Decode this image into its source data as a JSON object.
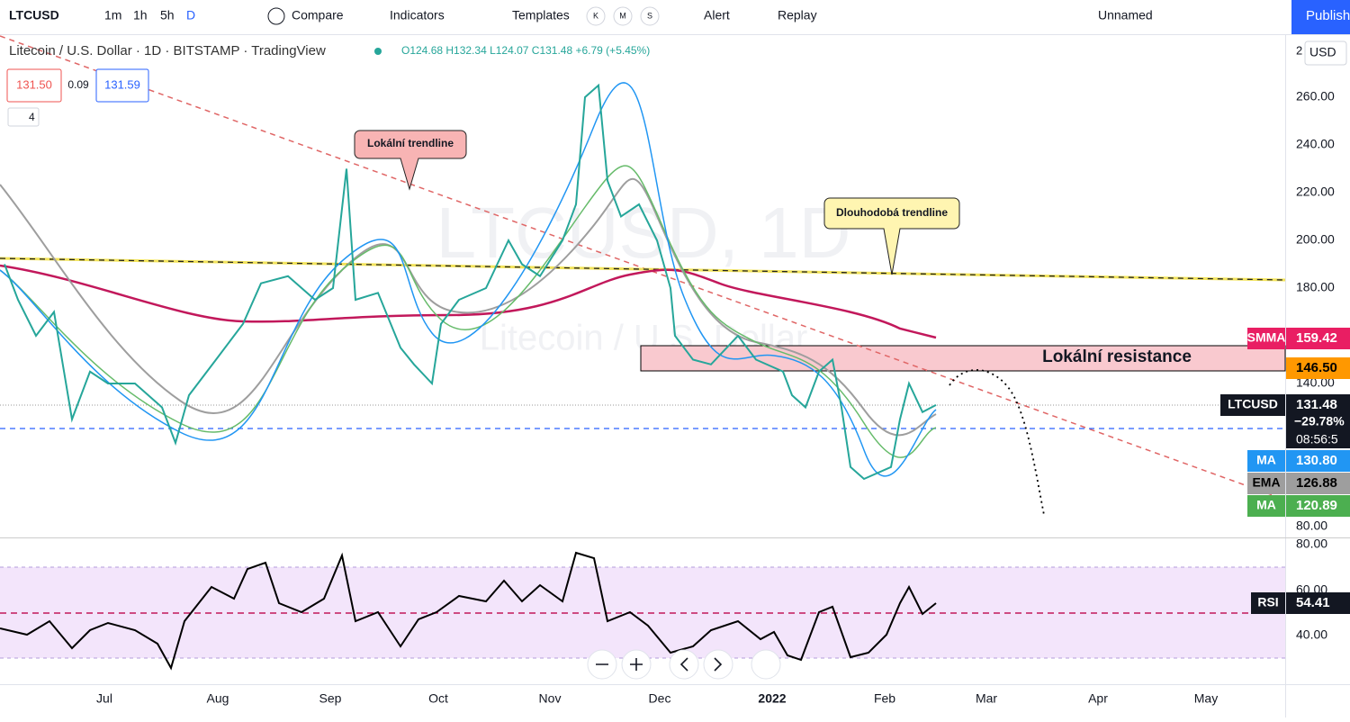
{
  "toolbar": {
    "symbol": "LTCUSD",
    "intervals": [
      "1m",
      "1h",
      "5h",
      "D"
    ],
    "compare": "Compare",
    "indicators": "Indicators",
    "templates": "Templates",
    "template_keys": [
      "K",
      "M",
      "S"
    ],
    "alert": "Alert",
    "replay": "Replay",
    "layout_name": "Unnamed",
    "publish": "Publish"
  },
  "legend": {
    "title": "Litecoin / U.S. Dollar · 1D · BITSTAMP · TradingView",
    "ohlc": "O124.68 H132.34 L124.07 C131.48 +6.79 (+5.45%)",
    "bid": "131.50",
    "spread": "0.09",
    "ask": "131.59",
    "indicator_count": "4"
  },
  "watermark": {
    "symbol": "LTCUSD, 1D",
    "name": "Litecoin / U.S. Dollar"
  },
  "annotations": {
    "local_trendline": "Lokální trendline",
    "long_trendline": "Dlouhodobá trendline",
    "resistance": "Lokální resistance"
  },
  "price_axis": {
    "currency": "USD",
    "top_cut": "2",
    "ticks": [
      "260.00",
      "240.00",
      "220.00",
      "200.00",
      "180.00",
      "140.00",
      "80.00"
    ],
    "labels": [
      {
        "name": "SMMA",
        "value": "159.42"
      },
      {
        "value": "146.50"
      },
      {
        "name": "LTCUSD",
        "value": "131.48",
        "change": "−29.78%",
        "countdown": "08:56:5"
      },
      {
        "name": "MA",
        "value": "130.80"
      },
      {
        "name": "EMA",
        "value": "126.88"
      },
      {
        "name": "MA",
        "value": "120.89"
      }
    ]
  },
  "rsi": {
    "ticks": [
      "80.00",
      "60.00",
      "40.00"
    ],
    "name": "RSI",
    "value": "54.41"
  },
  "time_axis": [
    "Jul",
    "Aug",
    "Sep",
    "Oct",
    "Nov",
    "Dec",
    "2022",
    "Feb",
    "Mar",
    "Apr",
    "May"
  ]
}
